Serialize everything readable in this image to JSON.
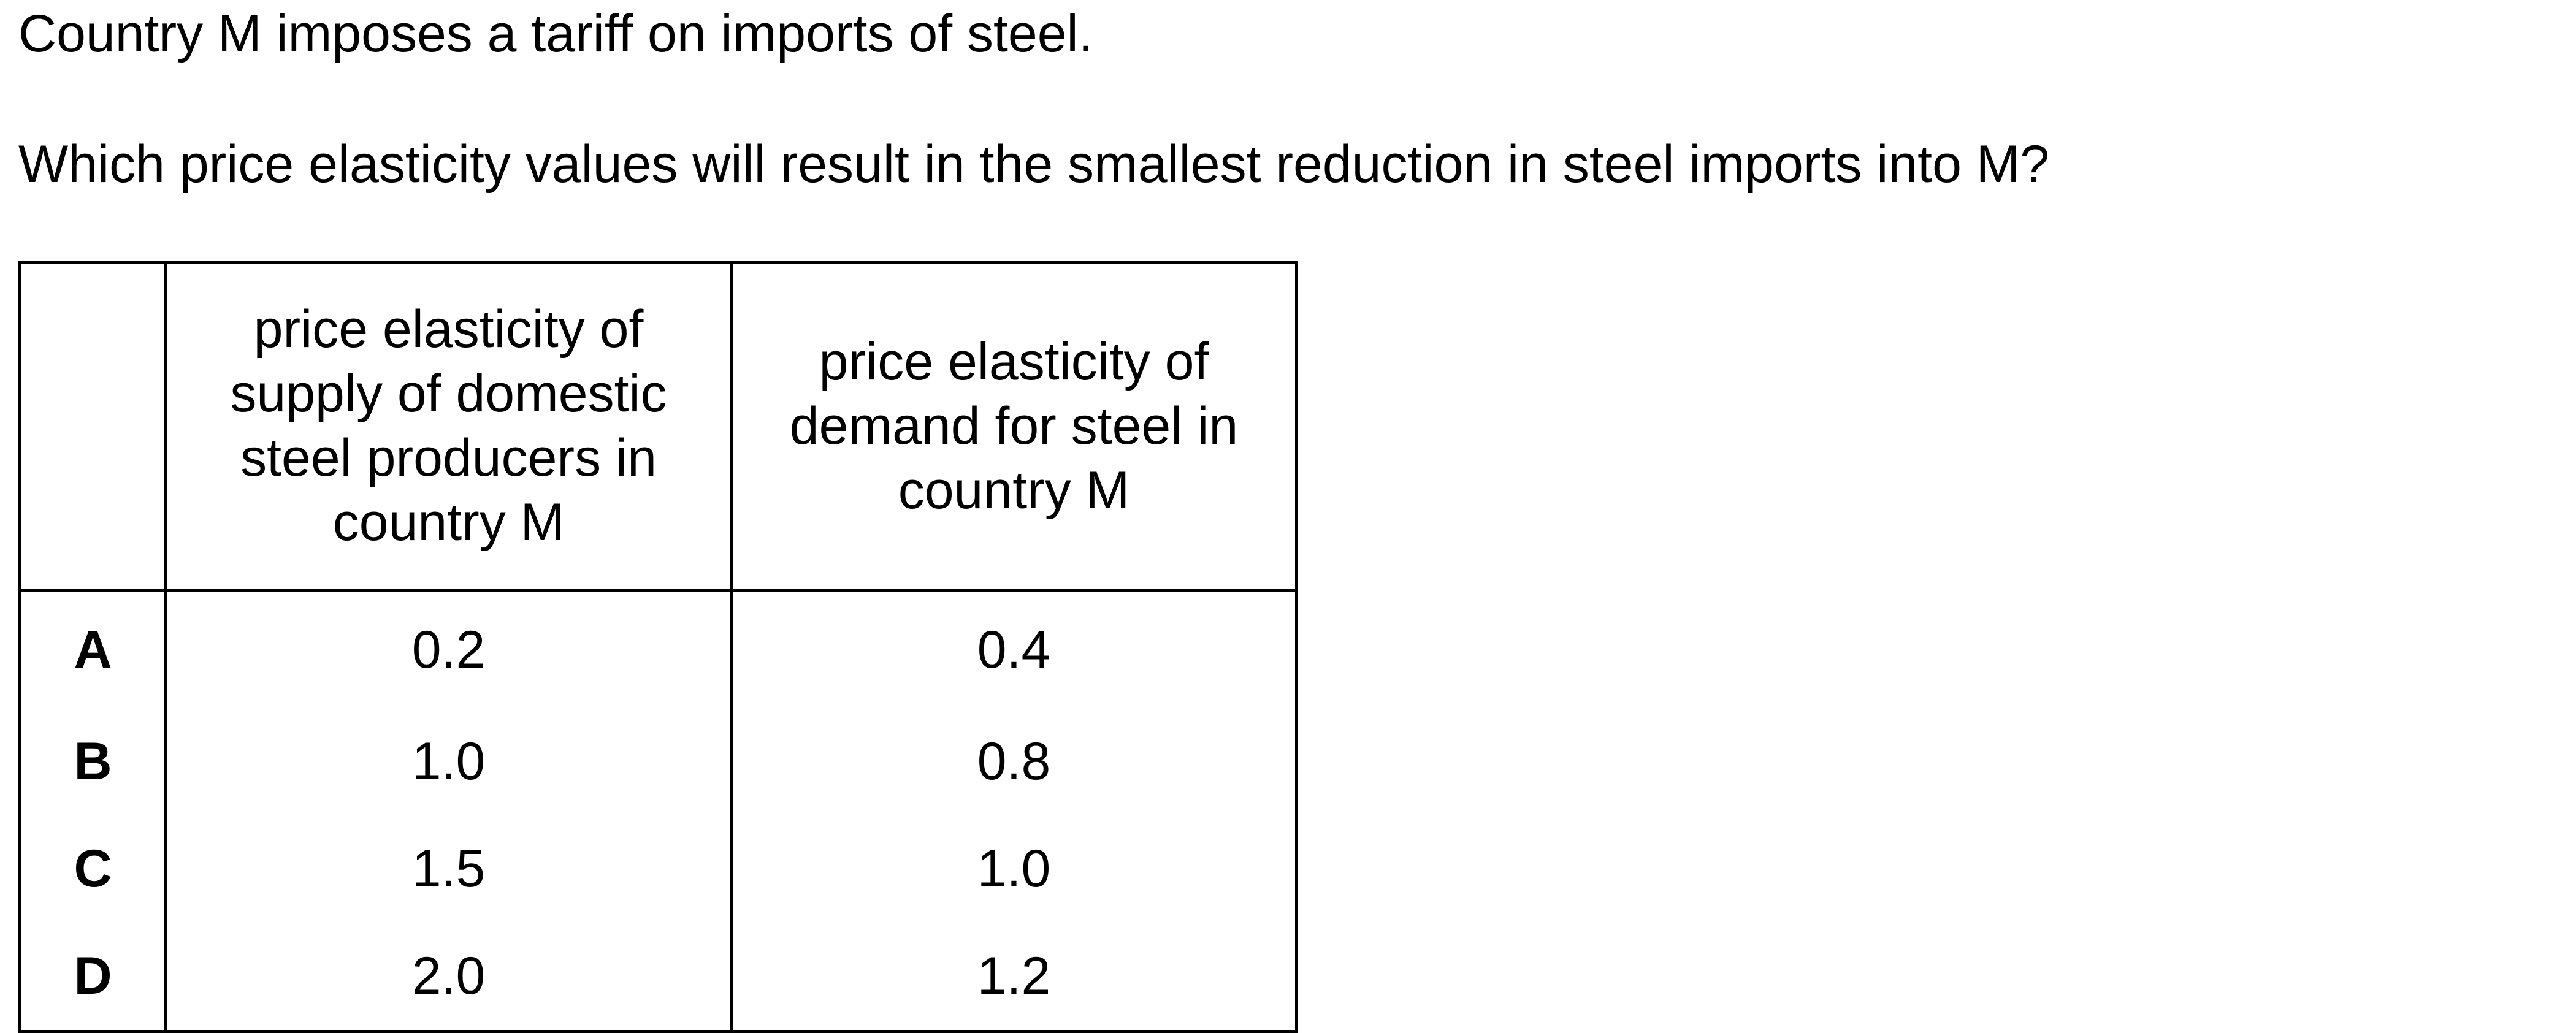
{
  "question": {
    "line1": "Country M imposes a tariff on imports of steel.",
    "line2": "Which price elasticity values will result in the smallest reduction in steel imports into M?"
  },
  "table": {
    "headers": [
      "",
      "price elasticity of supply of domestic steel producers in country M",
      "price elasticity of demand for steel in country M"
    ],
    "header_lines": {
      "supply": [
        "price elasticity of",
        "supply of domestic",
        "steel producers in",
        "country M"
      ],
      "demand": [
        "price elasticity of",
        "demand for steel in",
        "country M"
      ]
    },
    "rows": [
      {
        "option": "A",
        "supply": "0.2",
        "demand": "0.4"
      },
      {
        "option": "B",
        "supply": "1.0",
        "demand": "0.8"
      },
      {
        "option": "C",
        "supply": "1.5",
        "demand": "1.0"
      },
      {
        "option": "D",
        "supply": "2.0",
        "demand": "1.2"
      }
    ]
  }
}
